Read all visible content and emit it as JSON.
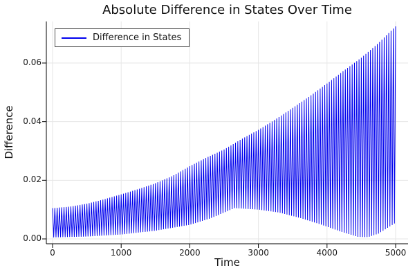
{
  "colors": {
    "series_blue": "#0000EE",
    "grid": "#E6E6E6",
    "axis": "#000000",
    "text": "#1A1A1A",
    "legend_border": "#4D4D4D",
    "background": "#FFFFFF"
  },
  "chart_data": {
    "type": "line",
    "title": "Absolute Difference in States Over Time",
    "xlabel": "Time",
    "ylabel": "Difference",
    "xlim": [
      0,
      5000
    ],
    "ylim": [
      0.0,
      0.074
    ],
    "x_ticks": [
      0,
      1000,
      2000,
      3000,
      4000,
      5000
    ],
    "x_tick_labels": [
      "0",
      "1000",
      "2000",
      "3000",
      "4000",
      "5000"
    ],
    "y_ticks": [
      0.0,
      0.02,
      0.04,
      0.06
    ],
    "y_tick_labels": [
      "0.00",
      "0.02",
      "0.04",
      "0.06"
    ],
    "grid": true,
    "legend_position": "top-left",
    "series": [
      {
        "name": "Difference in States",
        "color": "#0000EE",
        "waveform": "fast oscillation between lower and upper envelopes",
        "oscillation_period": 33.333,
        "envelope_upper": [
          [
            0,
            0.0105
          ],
          [
            250,
            0.011
          ],
          [
            500,
            0.012
          ],
          [
            750,
            0.0135
          ],
          [
            1000,
            0.0152
          ],
          [
            1250,
            0.017
          ],
          [
            1500,
            0.019
          ],
          [
            1750,
            0.0215
          ],
          [
            2000,
            0.0248
          ],
          [
            2250,
            0.0278
          ],
          [
            2500,
            0.0305
          ],
          [
            2750,
            0.034
          ],
          [
            3000,
            0.0372
          ],
          [
            3250,
            0.0408
          ],
          [
            3500,
            0.0447
          ],
          [
            3750,
            0.0487
          ],
          [
            4000,
            0.053
          ],
          [
            4250,
            0.0575
          ],
          [
            4500,
            0.0618
          ],
          [
            4750,
            0.0668
          ],
          [
            5000,
            0.0725
          ]
        ],
        "envelope_lower": [
          [
            0,
            0.0005
          ],
          [
            500,
            0.0008
          ],
          [
            1000,
            0.0015
          ],
          [
            1500,
            0.0028
          ],
          [
            2000,
            0.0048
          ],
          [
            2300,
            0.007
          ],
          [
            2650,
            0.0105
          ],
          [
            3000,
            0.01
          ],
          [
            3300,
            0.009
          ],
          [
            3600,
            0.0072
          ],
          [
            3900,
            0.005
          ],
          [
            4200,
            0.0025
          ],
          [
            4450,
            0.0007
          ],
          [
            4600,
            0.0006
          ],
          [
            4750,
            0.0018
          ],
          [
            5000,
            0.0055
          ]
        ]
      }
    ]
  }
}
